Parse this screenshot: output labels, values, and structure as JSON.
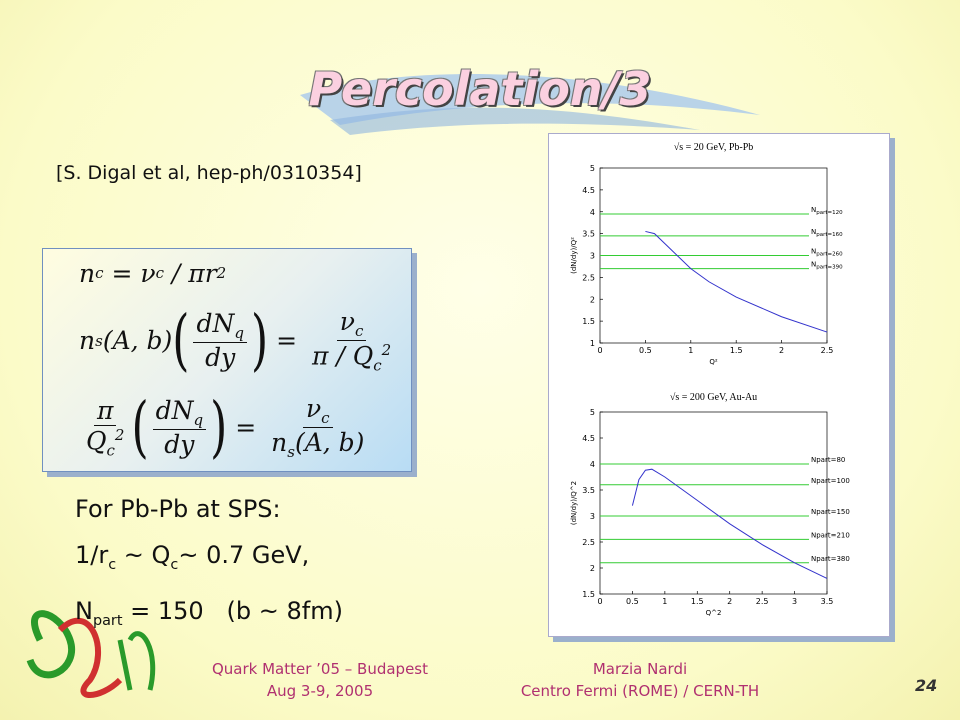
{
  "title": "Percolation/3",
  "reference": "[S. Digal et al, hep-ph/0310354]",
  "formulas": [
    [
      "n",
      {
        "sub": "c"
      },
      " = ν",
      {
        "sub": "c"
      },
      " / πr",
      {
        "sup": "2"
      }
    ],
    [
      "n",
      {
        "sub": "s"
      },
      "(A, b)",
      {
        "paren": [
          {
            "frac": [
              [
                "dN",
                {
                  "sub": "q"
                }
              ],
              [
                "dy"
              ]
            ]
          }
        ]
      },
      " = ",
      {
        "frac": [
          [
            "ν",
            {
              "sub": "c"
            }
          ],
          [
            "π / Q",
            {
              "sub": "c"
            },
            {
              "sup": "2"
            }
          ]
        ]
      }
    ],
    [
      {
        "frac": [
          [
            "π"
          ],
          [
            "Q",
            {
              "sub": "c"
            },
            {
              "sup": "2"
            }
          ]
        ]
      },
      {
        "paren": [
          {
            "frac": [
              [
                "dN",
                {
                  "sub": "q"
                }
              ],
              [
                "dy"
              ]
            ]
          }
        ]
      },
      " = ",
      {
        "frac": [
          [
            "ν",
            {
              "sub": "c"
            }
          ],
          [
            "n",
            {
              "sub": "s"
            },
            "(A, b)"
          ]
        ]
      }
    ]
  ],
  "notes": [
    [
      "For Pb-Pb at SPS:"
    ],
    [
      "1/r",
      {
        "sub": "c"
      },
      " ~ Q",
      {
        "sub": "c"
      },
      "~ 0.7 GeV,"
    ],
    [
      "N",
      {
        "sub": "part"
      },
      " = 150   (b ~ 8fm)"
    ]
  ],
  "chart_data": [
    {
      "type": "line",
      "title": "√s = 20 GeV, Pb-Pb",
      "xlabel": "Q²",
      "ylabel": "(dN/dy)/Q²",
      "xlim": [
        0,
        2.5
      ],
      "xticks": [
        0,
        0.5,
        1,
        1.5,
        2,
        2.5
      ],
      "ylim": [
        1,
        5
      ],
      "yticks": [
        1,
        1.5,
        2,
        2.5,
        3,
        3.5,
        4,
        4.5,
        5
      ],
      "x": [
        0.5,
        0.6,
        0.8,
        1.0,
        1.2,
        1.5,
        2.0,
        2.5
      ],
      "values": [
        3.55,
        3.5,
        3.1,
        2.7,
        2.4,
        2.05,
        1.6,
        1.25
      ],
      "color": "#3333cc",
      "level_color": "#33cc33",
      "levels": [
        {
          "label": [
            "N",
            {
              "sub": "part=120"
            }
          ],
          "value": 3.95
        },
        {
          "label": [
            "N",
            {
              "sub": "part=160"
            }
          ],
          "value": 3.45
        },
        {
          "label": [
            "N",
            {
              "sub": "part=260"
            }
          ],
          "value": 3.0
        },
        {
          "label": [
            "N",
            {
              "sub": "part=390"
            }
          ],
          "value": 2.7
        }
      ]
    },
    {
      "type": "line",
      "title": "√s = 200 GeV, Au-Au",
      "xlabel": "Q^2",
      "ylabel": "(dN/dy)/Q^2",
      "xlim": [
        0,
        3.5
      ],
      "xticks": [
        0,
        0.5,
        1,
        1.5,
        2,
        2.5,
        3,
        3.5
      ],
      "ylim": [
        1.5,
        5
      ],
      "yticks": [
        1.5,
        2,
        2.5,
        3,
        3.5,
        4,
        4.5,
        5
      ],
      "x": [
        0.5,
        0.6,
        0.7,
        0.8,
        1.0,
        1.5,
        2.0,
        2.5,
        3.0,
        3.5
      ],
      "values": [
        3.2,
        3.7,
        3.88,
        3.9,
        3.75,
        3.3,
        2.85,
        2.45,
        2.1,
        1.8
      ],
      "color": "#3333cc",
      "level_color": "#33cc33",
      "levels": [
        {
          "label": [
            "Npart=80"
          ],
          "value": 4.0
        },
        {
          "label": [
            "Npart=100"
          ],
          "value": 3.6
        },
        {
          "label": [
            "Npart=150"
          ],
          "value": 3.0
        },
        {
          "label": [
            "Npart=210"
          ],
          "value": 2.55
        },
        {
          "label": [
            "Npart=380"
          ],
          "value": 2.1
        }
      ]
    }
  ],
  "footer": {
    "conference": "Quark Matter ’05 – Budapest",
    "dates": "Aug 3-9, 2005",
    "author": "Marzia Nardi",
    "affiliation": "Centro Fermi (ROME) / CERN-TH",
    "page": "24"
  }
}
